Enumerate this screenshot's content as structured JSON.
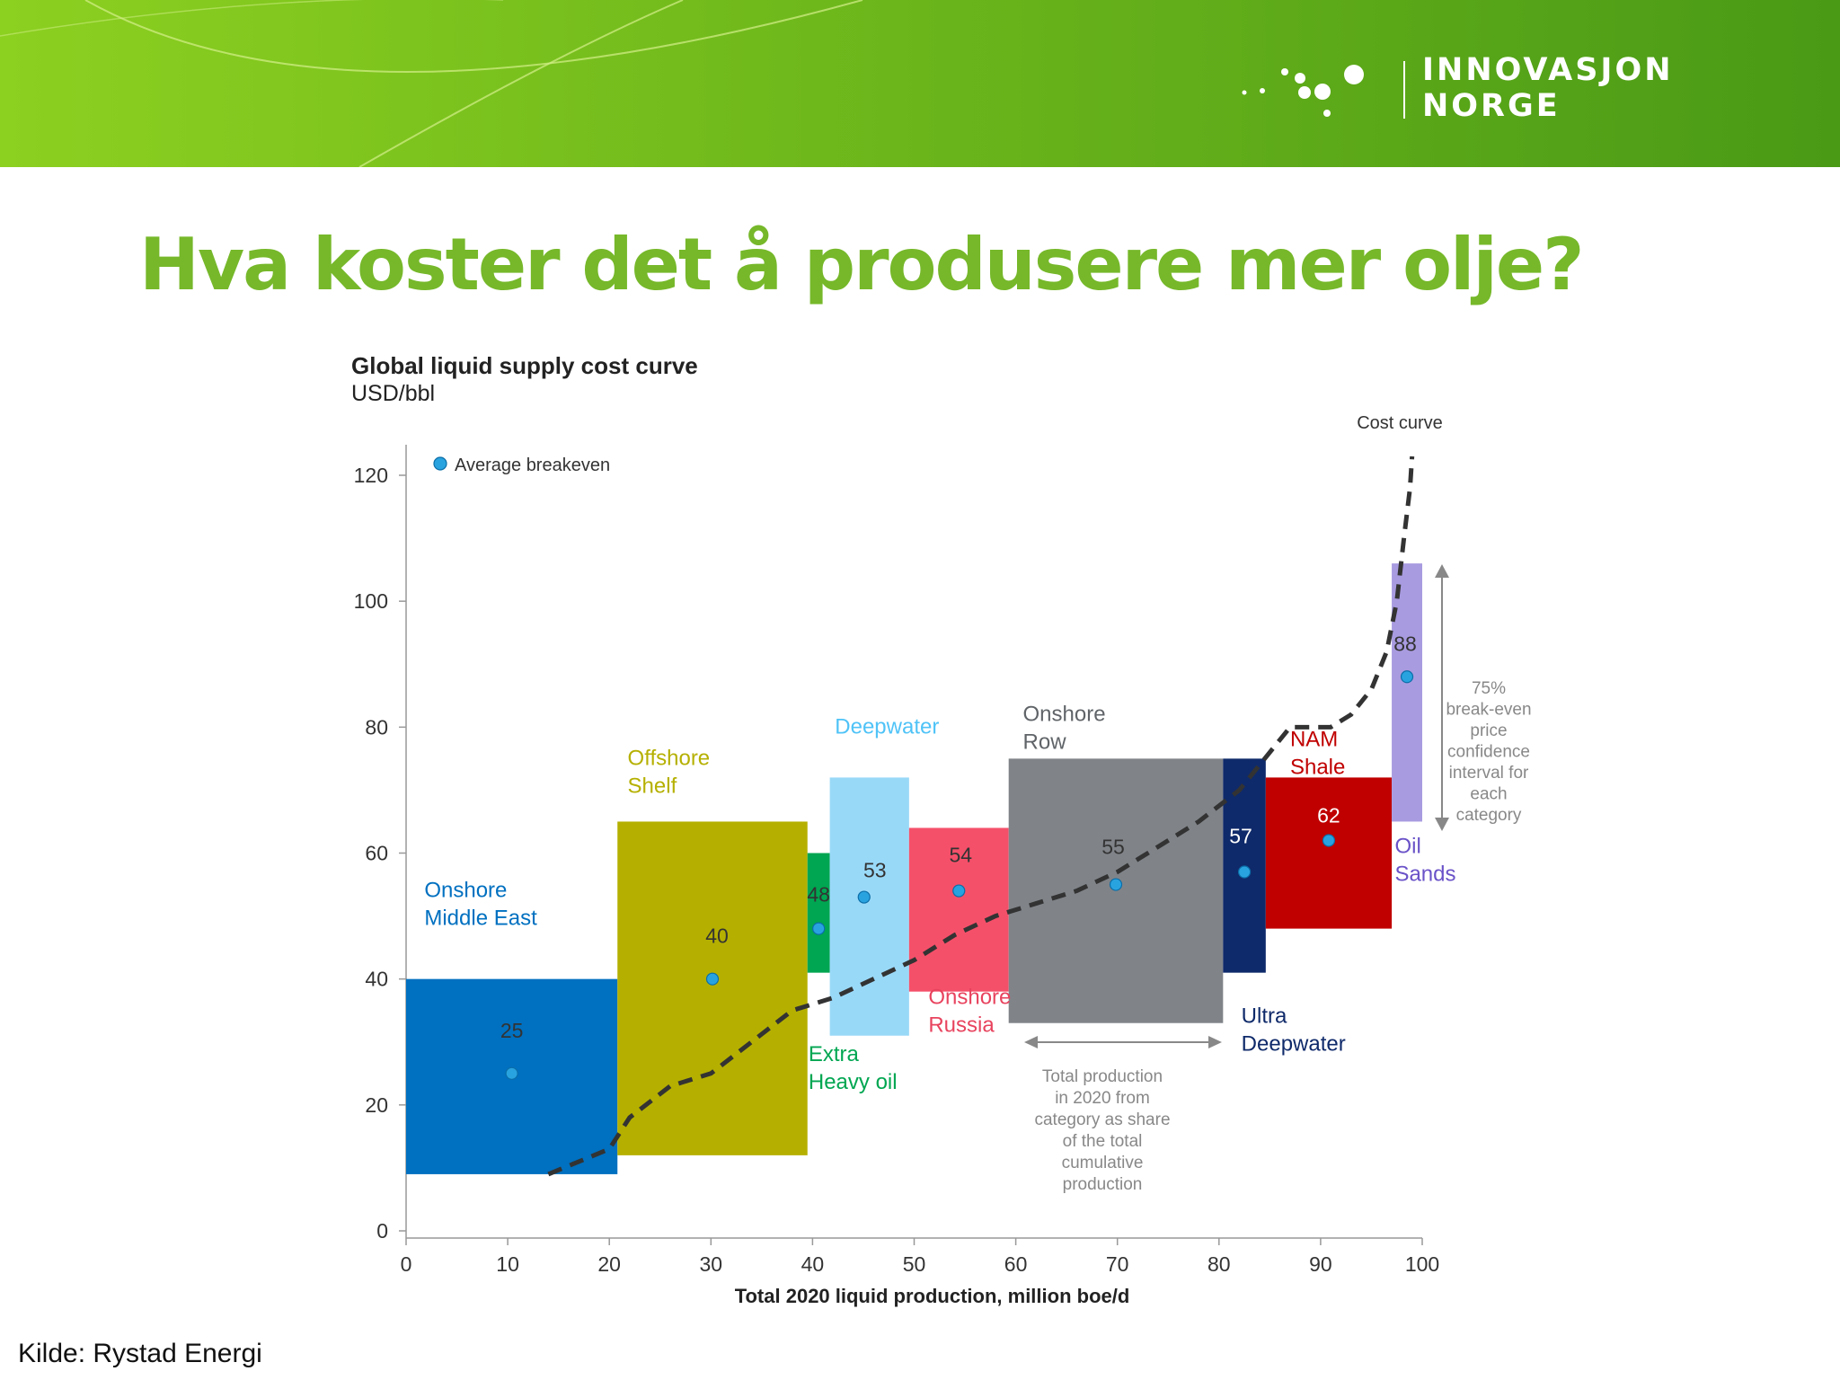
{
  "header": {
    "logo_line1": "INNOVASJON",
    "logo_line2": "NORGE",
    "green_dark": "#4a9a16",
    "green_light": "#8cd020"
  },
  "page_title": "Hva koster det å produsere mer olje?",
  "source_note": "Kilde: Rystad Energi",
  "chart_data": {
    "type": "bar",
    "title": "Global liquid supply cost curve",
    "subtitle": "USD/bbl",
    "xlabel": "Total 2020 liquid production, million boe/d",
    "ylabel": "",
    "xlim": [
      0,
      100
    ],
    "ylim": [
      0,
      120
    ],
    "x_ticks": [
      "0",
      "10",
      "20",
      "30",
      "40",
      "50",
      "60",
      "70",
      "80",
      "90",
      "100"
    ],
    "y_ticks": [
      "0",
      "20",
      "40",
      "60",
      "80",
      "100",
      "120"
    ],
    "legend": {
      "label": "Average breakeven",
      "color": "#29a3e0",
      "position": "top-left"
    },
    "categories": [
      {
        "label": [
          "Onshore",
          "Middle East"
        ],
        "x0": 0,
        "x1": 20.8,
        "low": 9,
        "high": 40,
        "breakeven": 25,
        "breakeven_label": "25",
        "color": "#0070c0",
        "label_color": "#0070c0"
      },
      {
        "label": [
          "Offshore",
          "Shelf"
        ],
        "x0": 20.8,
        "x1": 39.5,
        "low": 12,
        "high": 65,
        "breakeven": 40,
        "breakeven_label": "40",
        "color": "#b5b000",
        "label_color": "#b5b000"
      },
      {
        "label": [
          "Extra",
          "Heavy oil"
        ],
        "x0": 39.5,
        "x1": 41.7,
        "low": 41,
        "high": 60,
        "breakeven": 48,
        "breakeven_label": "48",
        "color": "#00a651",
        "label_color": "#00a651"
      },
      {
        "label": [
          "Deepwater"
        ],
        "x0": 41.7,
        "x1": 49.5,
        "low": 31,
        "high": 72,
        "breakeven": 53,
        "breakeven_label": "53",
        "color": "#99d9f8",
        "label_color": "#4fc3f7"
      },
      {
        "label": [
          "Onshore",
          "Russia"
        ],
        "x0": 49.5,
        "x1": 59.3,
        "low": 38,
        "high": 64,
        "breakeven": 54,
        "breakeven_label": "54",
        "color": "#f5506a",
        "label_color": "#e8435e"
      },
      {
        "label": [
          "Onshore",
          "Row"
        ],
        "x0": 59.3,
        "x1": 80.4,
        "low": 33,
        "high": 75,
        "breakeven": 55,
        "breakeven_label": "55",
        "color": "#808489",
        "label_color": "#606468"
      },
      {
        "label": [
          "Ultra",
          "Deepwater"
        ],
        "x0": 80.4,
        "x1": 84.6,
        "low": 41,
        "high": 75,
        "breakeven": 57,
        "breakeven_label": "57",
        "color": "#0f2a6a",
        "label_color": "#0f2a6a"
      },
      {
        "label": [
          "NAM",
          "Shale"
        ],
        "x0": 84.6,
        "x1": 97.0,
        "low": 48,
        "high": 72,
        "breakeven": 62,
        "breakeven_label": "62",
        "color": "#c00000",
        "label_color": "#c00000"
      },
      {
        "label": [
          "Oil",
          "Sands"
        ],
        "x0": 97.0,
        "x1": 100,
        "low": 65,
        "high": 106,
        "breakeven": 88,
        "breakeven_label": "88",
        "color": "#a99be0",
        "label_color": "#6a52c8"
      }
    ],
    "cost_curve": {
      "label": "Cost curve",
      "points": [
        [
          14,
          9
        ],
        [
          20,
          13
        ],
        [
          22,
          18
        ],
        [
          26,
          23
        ],
        [
          30,
          25
        ],
        [
          34,
          30
        ],
        [
          38,
          35
        ],
        [
          42,
          37
        ],
        [
          46,
          40
        ],
        [
          50,
          43
        ],
        [
          54,
          47
        ],
        [
          58,
          50
        ],
        [
          62,
          52
        ],
        [
          66,
          54
        ],
        [
          70,
          57
        ],
        [
          74,
          61
        ],
        [
          78,
          65
        ],
        [
          82,
          70
        ],
        [
          84,
          74
        ],
        [
          87,
          80
        ],
        [
          91,
          80
        ],
        [
          93,
          82
        ],
        [
          95,
          86
        ],
        [
          96.5,
          92
        ],
        [
          97.5,
          100
        ],
        [
          98.2,
          110
        ],
        [
          98.8,
          118
        ],
        [
          99,
          123
        ]
      ]
    },
    "annotations": {
      "confidence_interval": "75% break-even price confidence interval for each category",
      "production_share": "Total production in 2020 from category as share of the total cumulative production"
    }
  }
}
